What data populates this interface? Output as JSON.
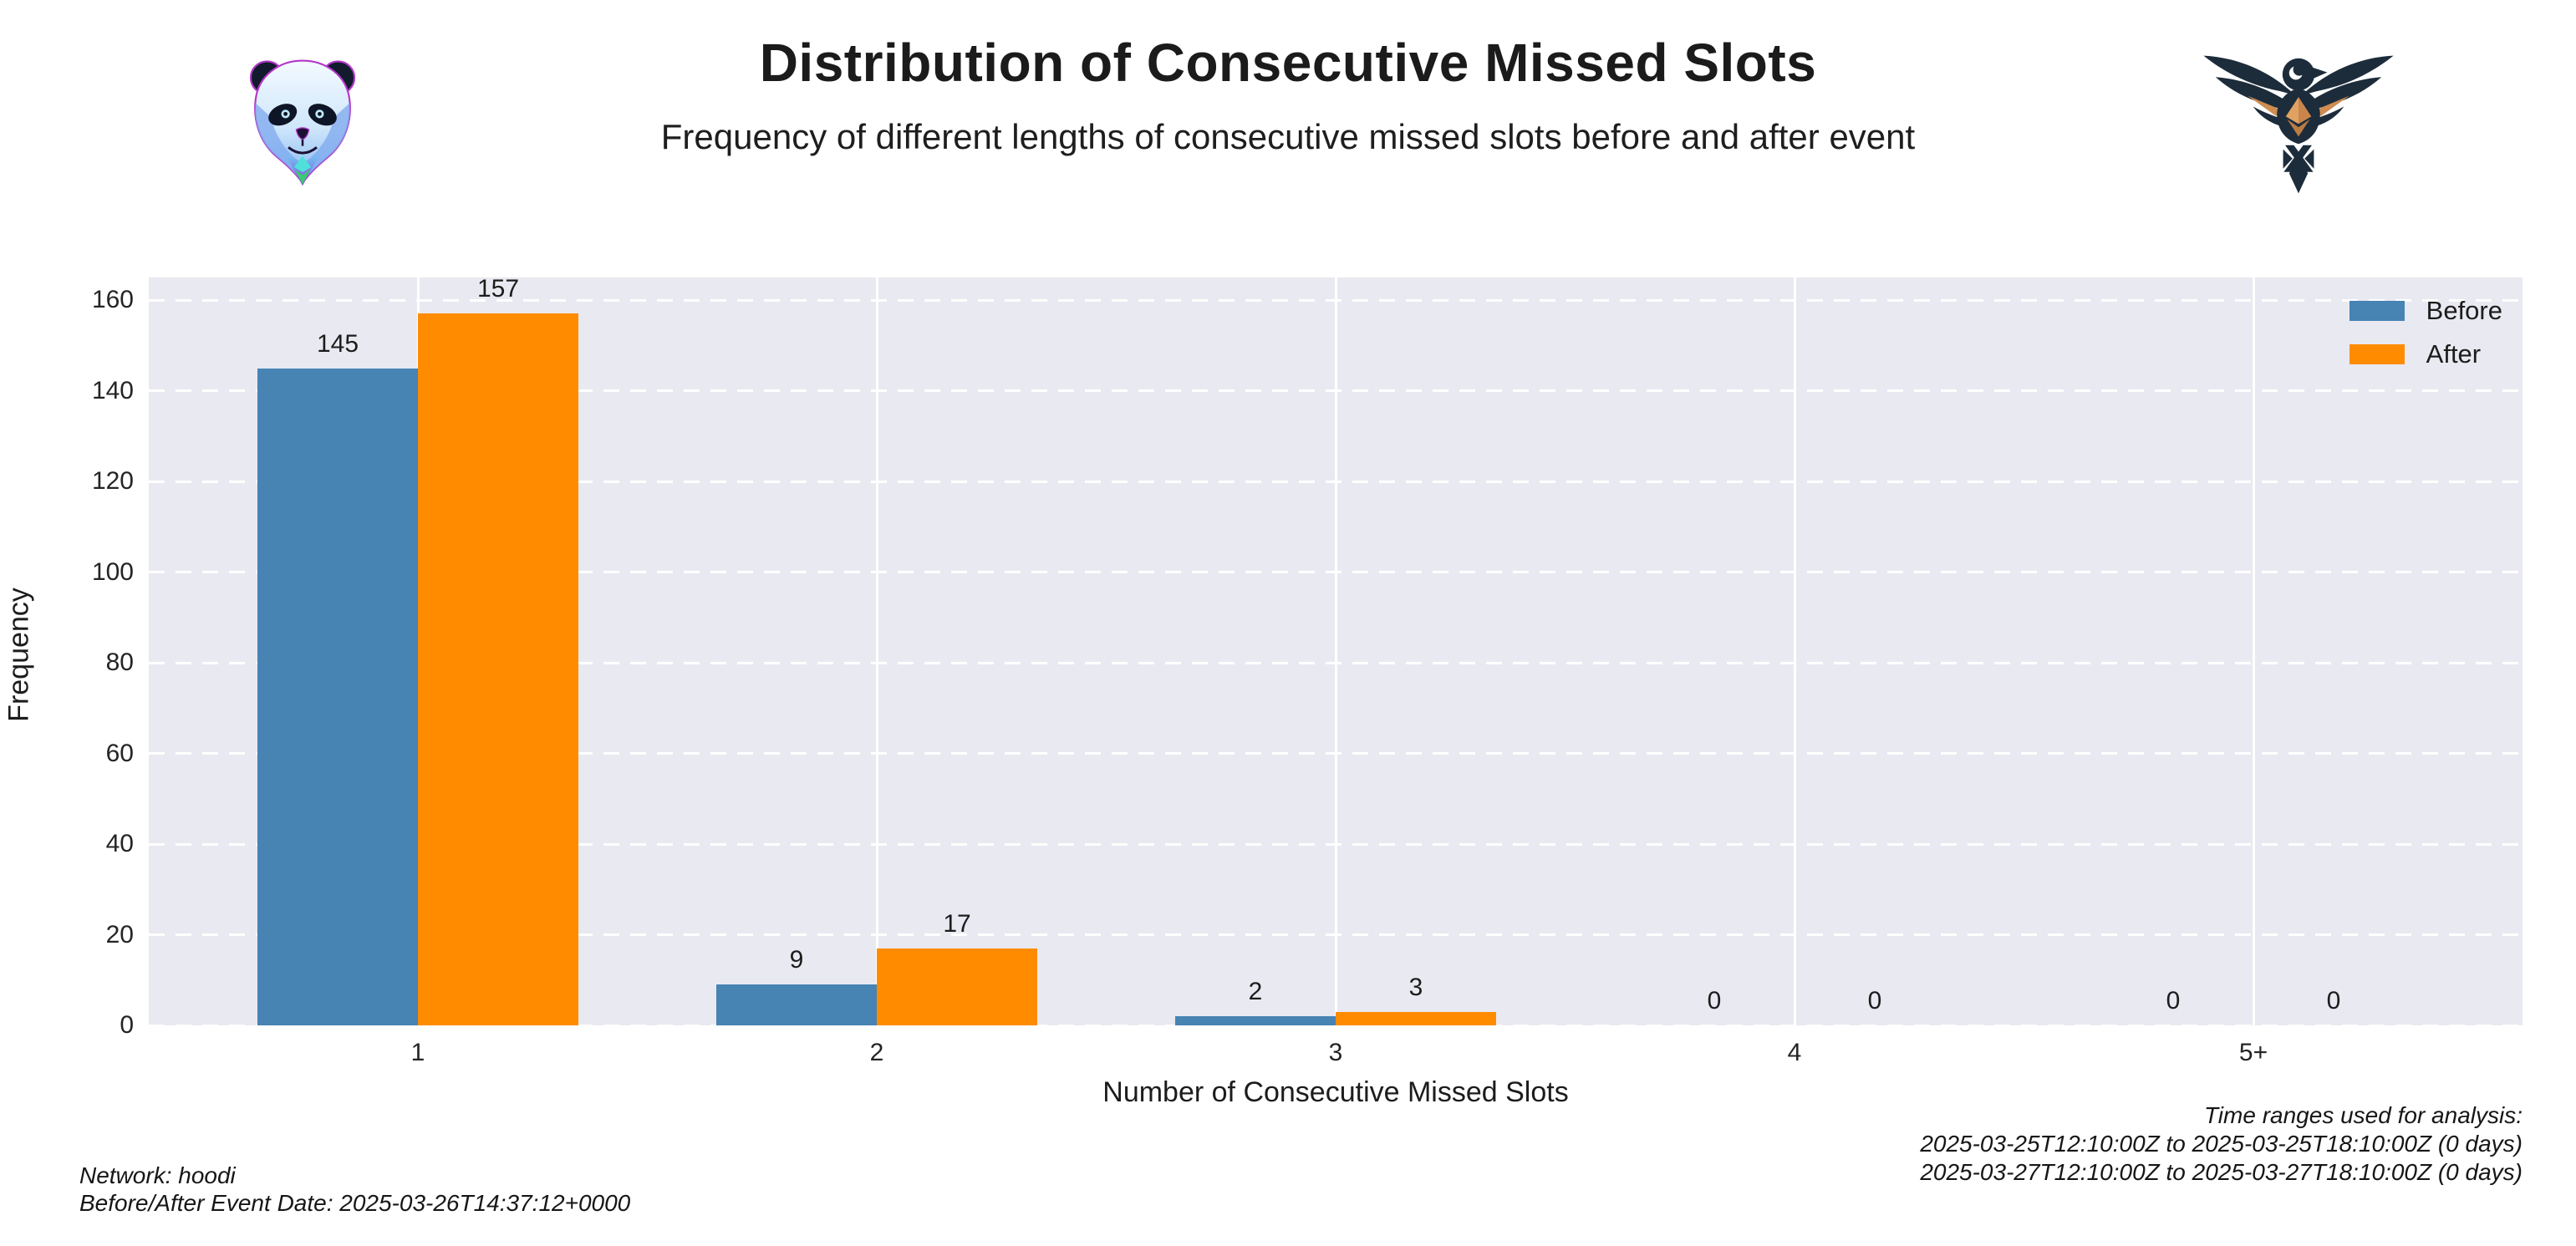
{
  "header": {
    "title": "Distribution of Consecutive Missed Slots",
    "subtitle": "Frequency of different lengths of consecutive missed slots before and after event",
    "logos": {
      "left": "panda-ethereum",
      "right": "eagle-ethereum"
    }
  },
  "chart_data": {
    "type": "bar",
    "title": "Distribution of Consecutive Missed Slots",
    "categories": [
      "1",
      "2",
      "3",
      "4",
      "5+"
    ],
    "series": [
      {
        "name": "Before",
        "color": "#4783b3",
        "values": [
          145,
          9,
          2,
          0,
          0
        ]
      },
      {
        "name": "After",
        "color": "#ff8c00",
        "values": [
          157,
          17,
          3,
          0,
          0
        ]
      }
    ],
    "xlabel": "Number of Consecutive Missed Slots",
    "ylabel": "Frequency",
    "ylim": [
      0,
      165
    ],
    "yticks": [
      0,
      20,
      40,
      60,
      80,
      100,
      120,
      140,
      160
    ],
    "bar_value_labels": true,
    "grid": {
      "horizontal": "white dashed",
      "vertical": "white solid at category centers"
    },
    "legend_position": "upper-right",
    "plot_background": "#e9e9f1"
  },
  "footer": {
    "left_lines": [
      "Network: hoodi",
      "Before/After Event Date: 2025-03-26T14:37:12+0000"
    ],
    "right_lines": [
      "Time ranges used for analysis:",
      "2025-03-25T12:10:00Z to 2025-03-25T18:10:00Z (0 days)",
      "2025-03-27T12:10:00Z to 2025-03-27T18:10:00Z (0 days)"
    ]
  }
}
